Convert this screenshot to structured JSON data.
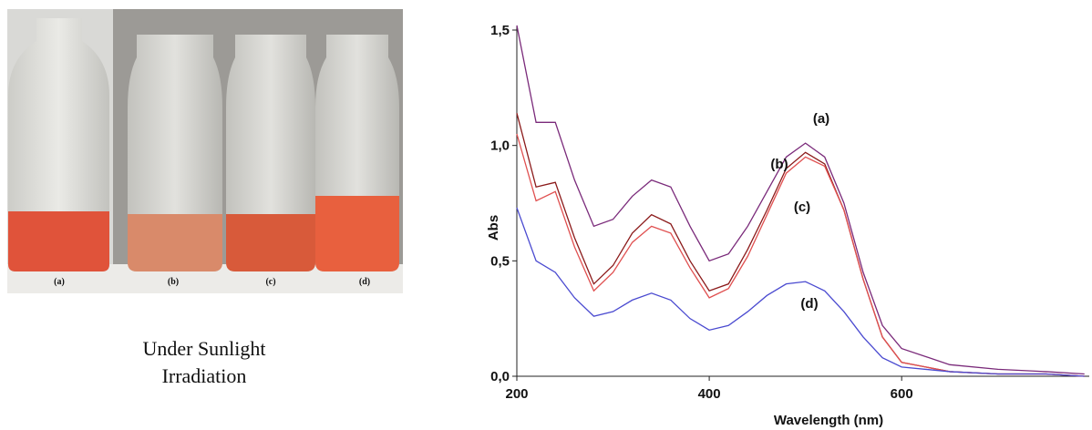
{
  "photo": {
    "labels": [
      "(a)",
      "(b)",
      "(c)",
      "(d)"
    ],
    "caption": [
      "Under Sunlight",
      "Irradiation"
    ]
  },
  "chart_data": {
    "type": "line",
    "xlabel": "Wavelength (nm)",
    "ylabel": "Abs",
    "x": [
      200,
      220,
      240,
      260,
      280,
      300,
      320,
      340,
      360,
      380,
      400,
      420,
      440,
      460,
      480,
      500,
      520,
      540,
      560,
      580,
      600,
      650,
      700,
      750,
      790
    ],
    "series": [
      {
        "name": "(a)",
        "color": "#7a2a7a",
        "values": [
          1.52,
          1.1,
          1.1,
          0.85,
          0.65,
          0.68,
          0.78,
          0.85,
          0.82,
          0.65,
          0.5,
          0.53,
          0.65,
          0.8,
          0.95,
          1.01,
          0.95,
          0.75,
          0.45,
          0.22,
          0.12,
          0.05,
          0.03,
          0.02,
          0.01
        ]
      },
      {
        "name": "(b)",
        "color": "#8b1a1a",
        "values": [
          1.14,
          0.82,
          0.84,
          0.6,
          0.4,
          0.48,
          0.62,
          0.7,
          0.66,
          0.5,
          0.37,
          0.4,
          0.55,
          0.72,
          0.9,
          0.97,
          0.92,
          0.72,
          0.42,
          0.17,
          0.06,
          0.02,
          0.01,
          0.01,
          0.0
        ]
      },
      {
        "name": "(c)",
        "color": "#e05050",
        "values": [
          1.05,
          0.76,
          0.8,
          0.56,
          0.37,
          0.45,
          0.58,
          0.65,
          0.62,
          0.47,
          0.34,
          0.38,
          0.52,
          0.7,
          0.88,
          0.95,
          0.91,
          0.72,
          0.42,
          0.17,
          0.06,
          0.02,
          0.01,
          0.01,
          0.0
        ]
      },
      {
        "name": "(d)",
        "color": "#4a4ad0",
        "values": [
          0.73,
          0.5,
          0.45,
          0.34,
          0.26,
          0.28,
          0.33,
          0.36,
          0.33,
          0.25,
          0.2,
          0.22,
          0.28,
          0.35,
          0.4,
          0.41,
          0.37,
          0.28,
          0.17,
          0.08,
          0.04,
          0.02,
          0.01,
          0.01,
          0.0
        ]
      }
    ],
    "xlim": [
      200,
      795
    ],
    "ylim": [
      0,
      1.5
    ],
    "xticks": [
      200,
      400,
      600
    ],
    "yticks": [
      {
        "value": 0,
        "label": "0,0"
      },
      {
        "value": 0.5,
        "label": "0,5"
      },
      {
        "value": 1,
        "label": "1,0"
      },
      {
        "value": 1.5,
        "label": "1,5"
      }
    ]
  }
}
